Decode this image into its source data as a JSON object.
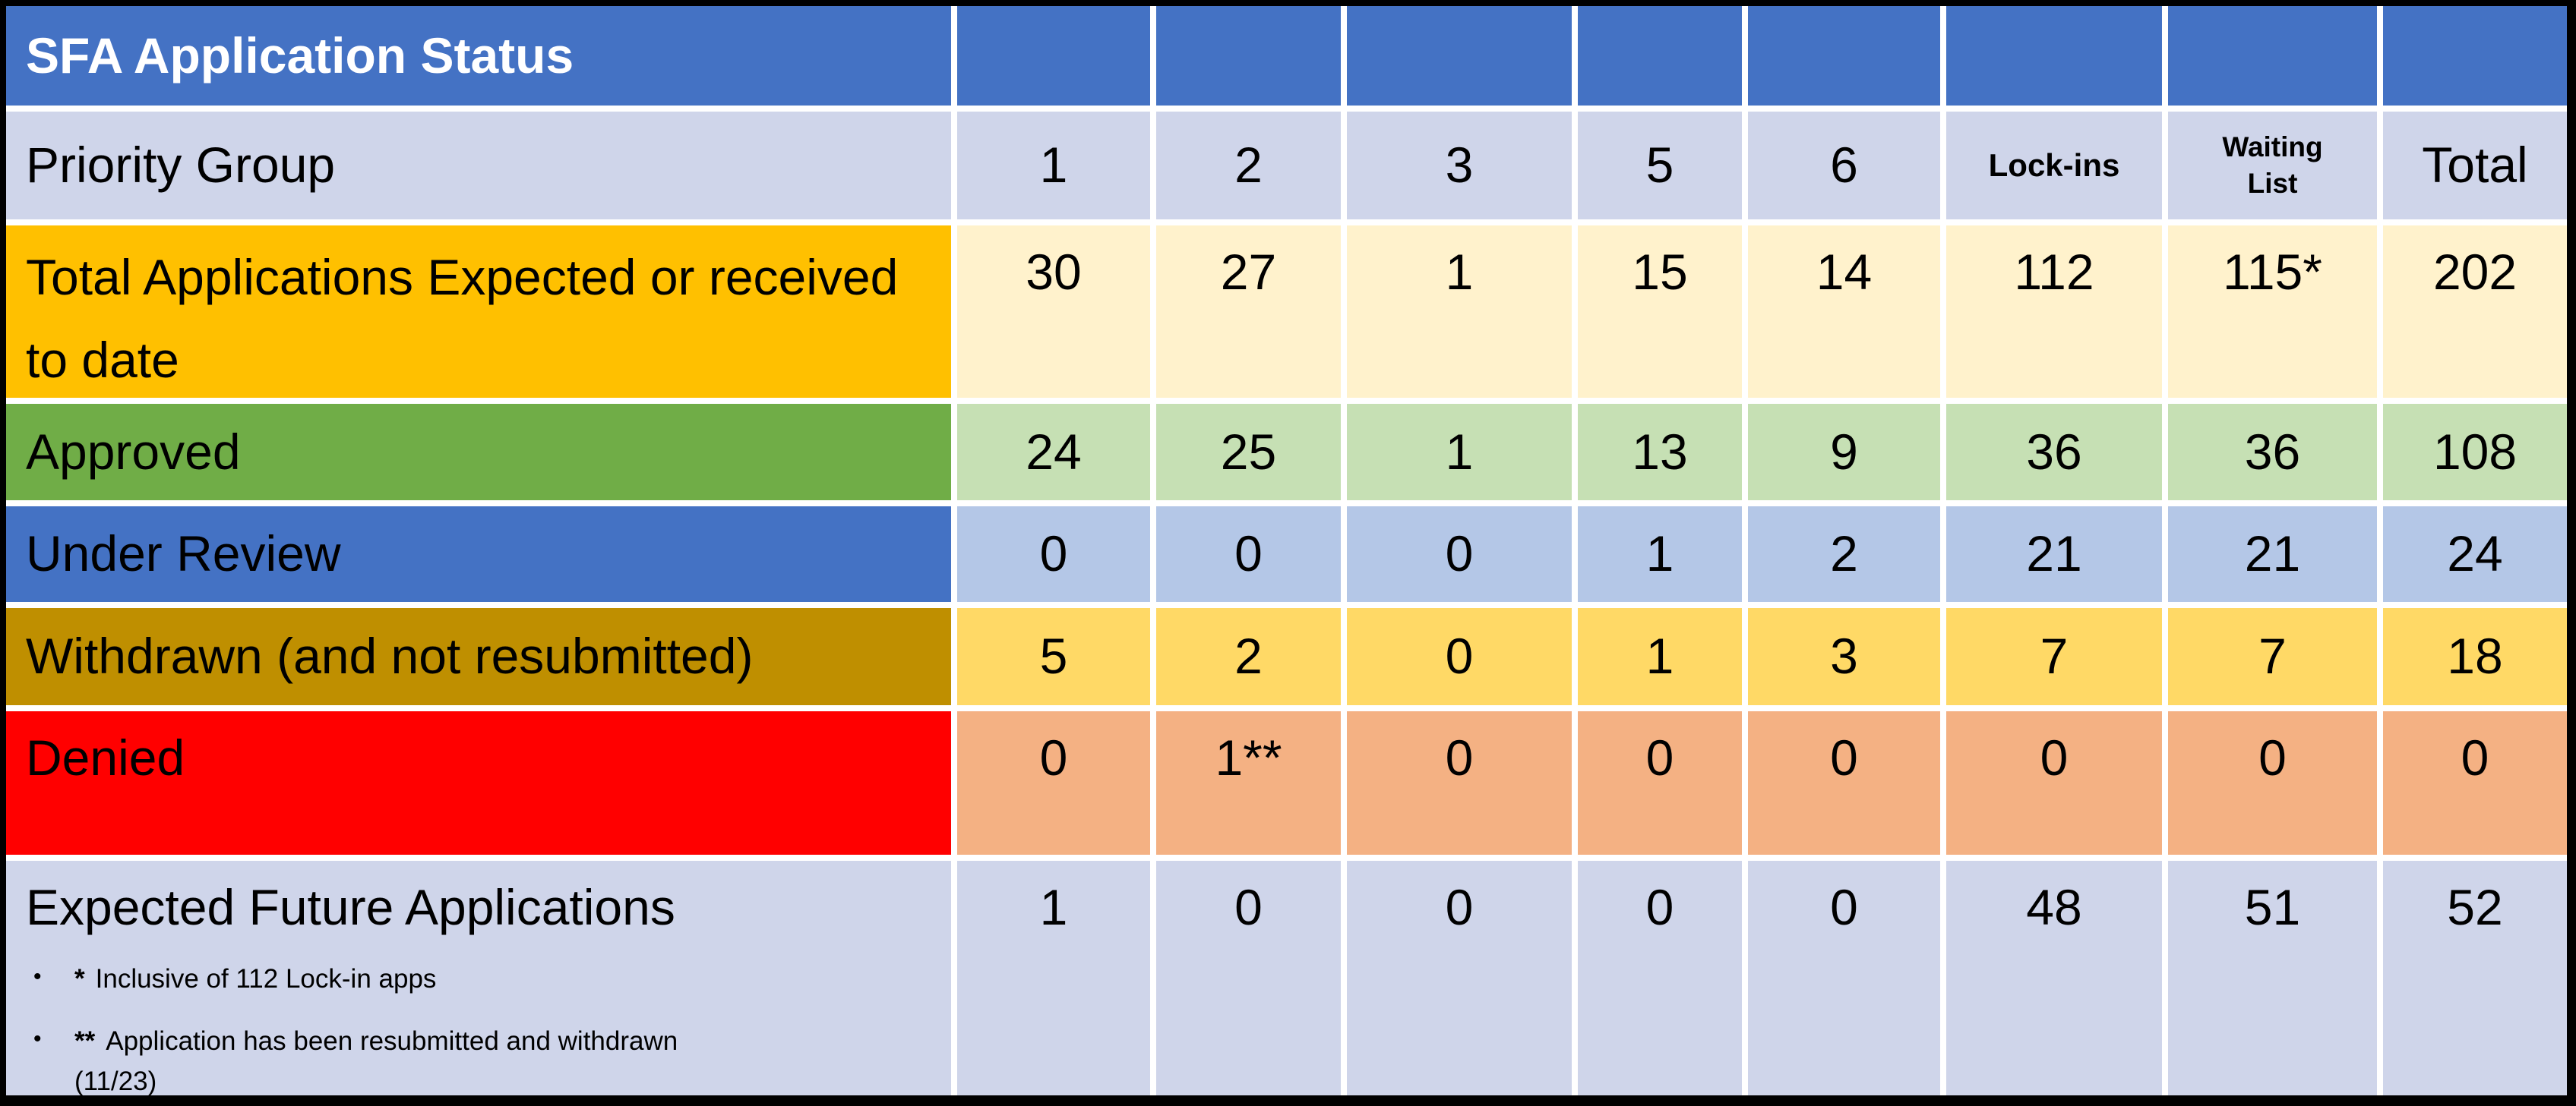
{
  "chart_data": {
    "type": "table",
    "title": "SFA Application Status",
    "columns": [
      "Priority Group",
      "1",
      "2",
      "3",
      "5",
      "6",
      "Lock-ins",
      "Waiting List",
      "Total"
    ],
    "rows": [
      [
        "Total Applications Expected or received to date",
        "30",
        "27",
        "1",
        "15",
        "14",
        "112",
        "115*",
        "202"
      ],
      [
        "Approved",
        "24",
        "25",
        "1",
        "13",
        "9",
        "36",
        "36",
        "108"
      ],
      [
        "Under Review",
        "0",
        "0",
        "0",
        "1",
        "2",
        "21",
        "21",
        "24"
      ],
      [
        "Withdrawn (and not resubmitted)",
        "5",
        "2",
        "0",
        "1",
        "3",
        "7",
        "7",
        "18"
      ],
      [
        "Denied",
        "0",
        "1**",
        "0",
        "0",
        "0",
        "0",
        "0",
        "0"
      ],
      [
        "Expected Future Applications",
        "1",
        "0",
        "0",
        "0",
        "0",
        "48",
        "51",
        "52"
      ]
    ],
    "footnotes": [
      {
        "bullet": "•",
        "marker": "*",
        "text": "Inclusive of 112 Lock-in apps"
      },
      {
        "bullet": "•",
        "marker": "**",
        "text": "Application has been resubmitted and withdrawn (11/23)"
      }
    ],
    "layout_hints": {
      "grid": "white gridlines",
      "outer_border": "black"
    }
  },
  "colors": {
    "outer_border": "#000000",
    "grid_lines": "#FFFFFF",
    "header_blue": "#4472C4",
    "band_lavender": "#CFD5EA",
    "amber": "#FFC000",
    "cream": "#FFF2CC",
    "green": "#70AD47",
    "light_green": "#C6E0B4",
    "light_blue": "#B4C7E7",
    "dark_gold": "#BF8F00",
    "gold": "#FFD966",
    "red": "#FF0000",
    "peach": "#F4B183",
    "title_text": "#FFFFFF",
    "body_text": "#000000"
  }
}
